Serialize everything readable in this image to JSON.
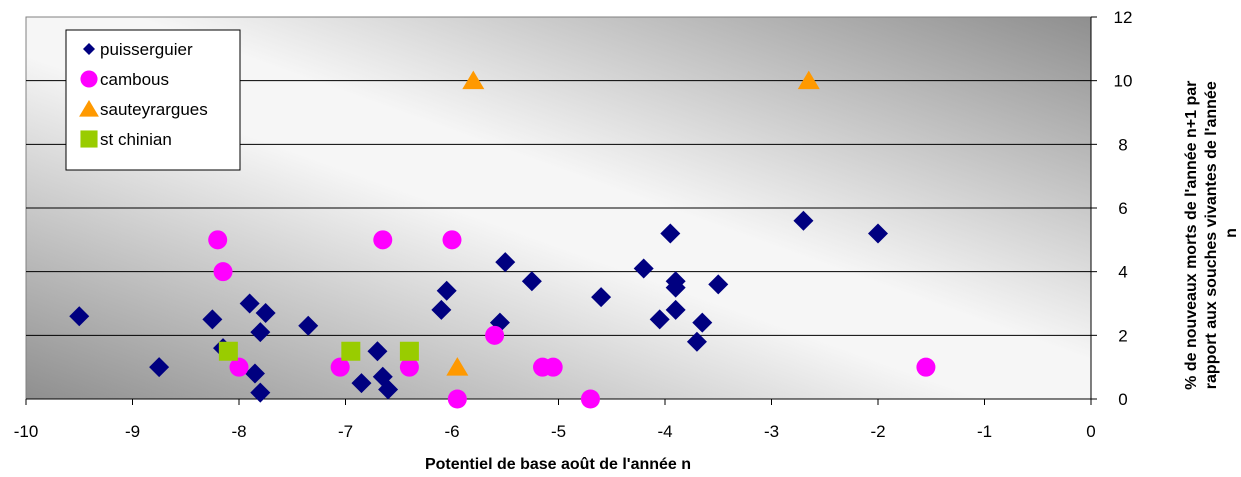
{
  "chart_data": {
    "type": "scatter",
    "title": "",
    "xlabel": "Potentiel de base août de l'année n",
    "ylabel_lines": [
      "% de nouveaux morts de l'année n+1 par",
      "rapport aux souches vivantes de l'année",
      "n"
    ],
    "xlim": [
      -10,
      0
    ],
    "ylim": [
      0,
      12
    ],
    "x_ticks": [
      -10,
      -9,
      -8,
      -7,
      -6,
      -5,
      -4,
      -3,
      -2,
      -1,
      0
    ],
    "y_ticks": [
      0,
      2,
      4,
      6,
      8,
      10,
      12
    ],
    "y_axis_side": "right",
    "grid": "horizontal",
    "background": "gradient-gray",
    "legend_position": "top-left",
    "series": [
      {
        "name": "puisserguier",
        "marker": "diamond",
        "color": "#000080",
        "points": [
          [
            -9.5,
            2.6
          ],
          [
            -8.75,
            1.0
          ],
          [
            -8.25,
            2.5
          ],
          [
            -8.15,
            1.6
          ],
          [
            -7.9,
            3.0
          ],
          [
            -7.85,
            0.8
          ],
          [
            -7.8,
            2.1
          ],
          [
            -7.8,
            0.2
          ],
          [
            -7.75,
            2.7
          ],
          [
            -7.35,
            2.3
          ],
          [
            -6.85,
            0.5
          ],
          [
            -6.7,
            1.5
          ],
          [
            -6.65,
            0.7
          ],
          [
            -6.6,
            0.3
          ],
          [
            -6.1,
            2.8
          ],
          [
            -6.05,
            3.4
          ],
          [
            -5.55,
            2.4
          ],
          [
            -5.5,
            4.3
          ],
          [
            -5.25,
            3.7
          ],
          [
            -4.6,
            3.2
          ],
          [
            -4.2,
            4.1
          ],
          [
            -4.05,
            2.5
          ],
          [
            -3.95,
            5.2
          ],
          [
            -3.9,
            2.8
          ],
          [
            -3.9,
            3.7
          ],
          [
            -3.9,
            3.5
          ],
          [
            -3.7,
            1.8
          ],
          [
            -3.65,
            2.4
          ],
          [
            -3.5,
            3.6
          ],
          [
            -2.7,
            5.6
          ],
          [
            -2.0,
            5.2
          ]
        ]
      },
      {
        "name": "cambous",
        "marker": "circle",
        "color": "#ff00ff",
        "points": [
          [
            -8.2,
            5.0
          ],
          [
            -8.15,
            4.0
          ],
          [
            -8.0,
            1.0
          ],
          [
            -7.05,
            1.0
          ],
          [
            -6.65,
            5.0
          ],
          [
            -6.4,
            1.0
          ],
          [
            -6.0,
            5.0
          ],
          [
            -5.95,
            0.0
          ],
          [
            -5.6,
            2.0
          ],
          [
            -5.15,
            1.0
          ],
          [
            -5.05,
            1.0
          ],
          [
            -4.7,
            0.0
          ],
          [
            -1.55,
            1.0
          ]
        ]
      },
      {
        "name": "sauteyrargues",
        "marker": "triangle",
        "color": "#ff9900",
        "points": [
          [
            -5.8,
            10.0
          ],
          [
            -2.65,
            10.0
          ],
          [
            -5.95,
            1.0
          ]
        ]
      },
      {
        "name": "st chinian",
        "marker": "square",
        "color": "#99cc00",
        "points": [
          [
            -8.1,
            1.5
          ],
          [
            -6.95,
            1.5
          ],
          [
            -6.4,
            1.5
          ]
        ]
      }
    ]
  }
}
